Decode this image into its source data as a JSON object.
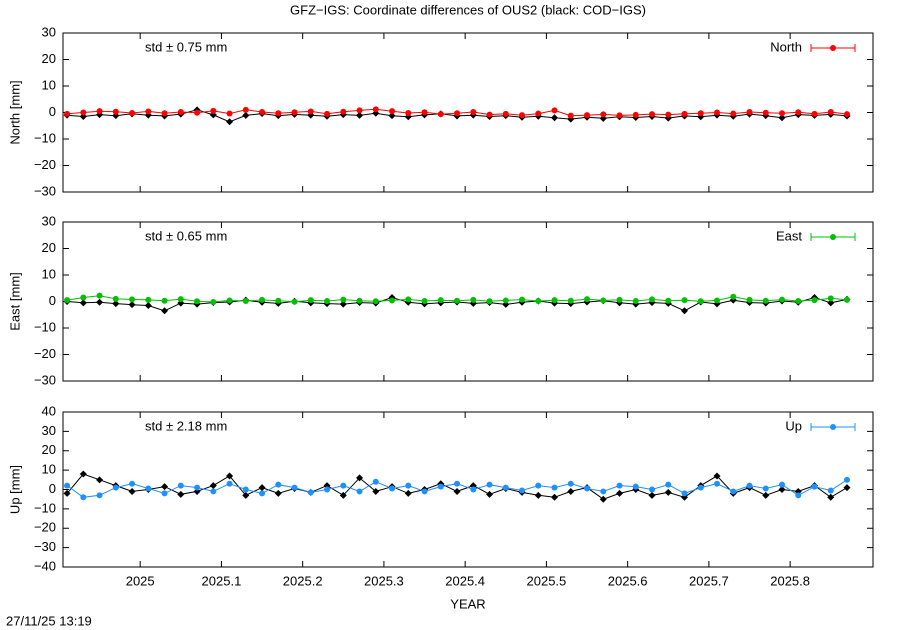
{
  "title": "GFZ−IGS: Coordinate differences of OUS2 (black: COD−IGS)",
  "footer": "27/11/25 13:19",
  "chart_data": [
    {
      "type": "scatter",
      "ylabel": "North [mm]",
      "annotation": "std ± 0.75 mm",
      "legend": "top-right",
      "ylim": [
        -30,
        30
      ],
      "yticks": [
        {
          "value": -30,
          "label": "−30"
        },
        {
          "value": -20,
          "label": "−20"
        },
        {
          "value": -10,
          "label": "−10"
        },
        0,
        10,
        20,
        30
      ],
      "x": [
        2024.91,
        2024.93,
        2024.95,
        2024.97,
        2024.99,
        2025.01,
        2025.03,
        2025.05,
        2025.07,
        2025.09,
        2025.11,
        2025.13,
        2025.15,
        2025.17,
        2025.19,
        2025.21,
        2025.23,
        2025.25,
        2025.27,
        2025.29,
        2025.31,
        2025.33,
        2025.35,
        2025.37,
        2025.39,
        2025.41,
        2025.43,
        2025.45,
        2025.47,
        2025.49,
        2025.51,
        2025.53,
        2025.55,
        2025.57,
        2025.59,
        2025.61,
        2025.63,
        2025.65,
        2025.67,
        2025.69,
        2025.71,
        2025.73,
        2025.75,
        2025.77,
        2025.79,
        2025.81,
        2025.83,
        2025.85,
        2025.87
      ],
      "series": [
        {
          "color": "#000000",
          "values": [
            -1,
            -1.5,
            -0.8,
            -1.2,
            -0.5,
            -1,
            -1.3,
            -0.6,
            1,
            -0.9,
            -3.5,
            -1.1,
            -0.4,
            -1.2,
            -0.7,
            -1,
            -1.4,
            -0.8,
            -1.1,
            -0.3,
            -1.2,
            -1.6,
            -0.9,
            -0.5,
            -1.3,
            -1,
            -1.5,
            -1.2,
            -1.8,
            -1.4,
            -2,
            -2.5,
            -1.8,
            -2.2,
            -1.6,
            -1.9,
            -1.5,
            -2.1,
            -1.3,
            -1.6,
            -1,
            -1.4,
            -0.6,
            -1.2,
            -2,
            -0.8,
            -1.1,
            -0.7,
            -1.3
          ]
        },
        {
          "name": "North",
          "color": "#ff0000",
          "values": [
            -0.5,
            0,
            0.5,
            0.3,
            -0.2,
            0.4,
            -0.3,
            0.2,
            -0.1,
            0.6,
            -0.4,
            1,
            0.2,
            -0.3,
            0.1,
            0.4,
            -0.5,
            0.3,
            0.8,
            1.2,
            0.5,
            -0.2,
            0.1,
            -0.6,
            -0.3,
            0.2,
            -0.8,
            -0.5,
            -1,
            -0.4,
            0.8,
            -1.2,
            -1,
            -0.7,
            -1.1,
            -0.9,
            -0.6,
            -0.8,
            -0.5,
            -0.3,
            0,
            -0.4,
            0.2,
            -0.1,
            -0.3,
            0.1,
            -0.5,
            0.2,
            -0.6
          ]
        }
      ]
    },
    {
      "type": "scatter",
      "ylabel": "East [mm]",
      "annotation": "std ± 0.65 mm",
      "legend": "top-right",
      "ylim": [
        -30,
        30
      ],
      "yticks": [
        {
          "value": -30,
          "label": "−30"
        },
        {
          "value": -20,
          "label": "−20"
        },
        {
          "value": -10,
          "label": "−10"
        },
        0,
        10,
        20,
        30
      ],
      "x": [
        2024.91,
        2024.93,
        2024.95,
        2024.97,
        2024.99,
        2025.01,
        2025.03,
        2025.05,
        2025.07,
        2025.09,
        2025.11,
        2025.13,
        2025.15,
        2025.17,
        2025.19,
        2025.21,
        2025.23,
        2025.25,
        2025.27,
        2025.29,
        2025.31,
        2025.33,
        2025.35,
        2025.37,
        2025.39,
        2025.41,
        2025.43,
        2025.45,
        2025.47,
        2025.49,
        2025.51,
        2025.53,
        2025.55,
        2025.57,
        2025.59,
        2025.61,
        2025.63,
        2025.65,
        2025.67,
        2025.69,
        2025.71,
        2025.73,
        2025.75,
        2025.77,
        2025.79,
        2025.81,
        2025.83,
        2025.85,
        2025.87
      ],
      "series": [
        {
          "color": "#000000",
          "values": [
            0,
            -0.5,
            -0.3,
            -0.8,
            -1.2,
            -1.5,
            -3.5,
            -0.6,
            -1,
            -0.4,
            -0.2,
            0.5,
            -0.3,
            -0.7,
            0.1,
            -0.5,
            -0.8,
            -1,
            -0.4,
            -0.6,
            1.5,
            -0.3,
            -0.9,
            -0.5,
            -0.2,
            -0.7,
            -0.4,
            -1.1,
            -0.3,
            0.2,
            -0.6,
            -0.8,
            -0.2,
            0.3,
            -0.5,
            -1,
            -0.4,
            -0.7,
            -3.5,
            -0.2,
            -0.9,
            0.5,
            -0.4,
            -0.6,
            0.2,
            -0.3,
            1.5,
            -0.5,
            0.8
          ]
        },
        {
          "name": "East",
          "color": "#00c000",
          "values": [
            0.5,
            1.5,
            2.2,
            1,
            0.8,
            0.6,
            0.3,
            0.9,
            0.1,
            -0.2,
            0.4,
            0.2,
            0.6,
            0.3,
            -0.1,
            0.5,
            0.2,
            0.7,
            0.3,
            0.1,
            0.4,
            0.8,
            0.2,
            0.5,
            0.3,
            0.6,
            0.1,
            0.4,
            0.7,
            0.2,
            0.5,
            0.3,
            0.9,
            0.4,
            0.6,
            0.2,
            0.8,
            0.3,
            0.5,
            0.1,
            0.4,
            1.8,
            0.6,
            0.3,
            0.7,
            0.2,
            0.5,
            1.2,
            0.6
          ]
        }
      ]
    },
    {
      "type": "scatter",
      "ylabel": "Up [mm]",
      "annotation": "std ± 2.18 mm",
      "legend": "top-right",
      "xlabel": "YEAR",
      "ylim": [
        -40,
        40
      ],
      "yticks": [
        {
          "value": -40,
          "label": "−40"
        },
        {
          "value": -30,
          "label": "−30"
        },
        {
          "value": -20,
          "label": "−20"
        },
        {
          "value": -10,
          "label": "−10"
        },
        0,
        10,
        20,
        30,
        40
      ],
      "xlim": [
        2024.905,
        2025.902
      ],
      "xticks": [
        2025,
        2025.1,
        2025.2,
        2025.3,
        2025.4,
        2025.5,
        2025.6,
        2025.7,
        2025.8
      ],
      "x": [
        2024.91,
        2024.93,
        2024.95,
        2024.97,
        2024.99,
        2025.01,
        2025.03,
        2025.05,
        2025.07,
        2025.09,
        2025.11,
        2025.13,
        2025.15,
        2025.17,
        2025.19,
        2025.21,
        2025.23,
        2025.25,
        2025.27,
        2025.29,
        2025.31,
        2025.33,
        2025.35,
        2025.37,
        2025.39,
        2025.41,
        2025.43,
        2025.45,
        2025.47,
        2025.49,
        2025.51,
        2025.53,
        2025.55,
        2025.57,
        2025.59,
        2025.61,
        2025.63,
        2025.65,
        2025.67,
        2025.69,
        2025.71,
        2025.73,
        2025.75,
        2025.77,
        2025.79,
        2025.81,
        2025.83,
        2025.85,
        2025.87
      ],
      "series": [
        {
          "color": "#000000",
          "values": [
            -2,
            8,
            5,
            2,
            -1,
            0,
            1.5,
            -2.5,
            -1,
            2,
            7,
            -3,
            1,
            -2,
            0.5,
            -1.5,
            2,
            -3,
            6,
            -1,
            1.5,
            -2,
            0,
            3,
            -1,
            2,
            -2.5,
            0.5,
            -1.5,
            -3,
            -4,
            -1,
            1,
            -5,
            -2,
            0,
            -3,
            -1.5,
            -4,
            2,
            7,
            -2,
            1,
            -3,
            0,
            -1,
            2,
            -4,
            1
          ]
        },
        {
          "name": "Up",
          "color": "#1e90ff",
          "values": [
            2,
            -4,
            -3,
            1,
            3,
            0.5,
            -2,
            2,
            1,
            -1,
            3,
            0,
            -2,
            2.5,
            1,
            -1.5,
            0,
            2,
            -1,
            4,
            0.5,
            2,
            -1,
            1.5,
            3,
            0,
            2.5,
            1,
            -0.5,
            2,
            1,
            3,
            0.5,
            -1,
            2,
            1.5,
            0,
            2.5,
            -2,
            1,
            3,
            -1,
            2,
            0.5,
            2.5,
            -3,
            1.5,
            -0.5,
            5
          ]
        }
      ]
    }
  ]
}
